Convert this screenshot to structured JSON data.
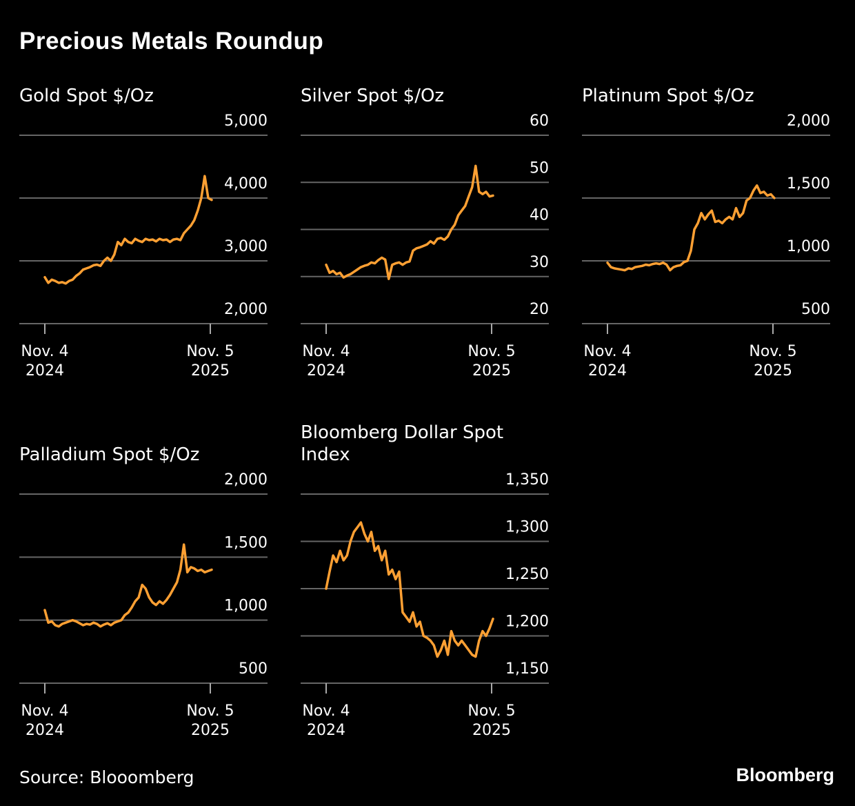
{
  "title": "Precious Metals Roundup",
  "source": "Source: Blooomberg",
  "brand": "Bloomberg",
  "colors": {
    "line": "#FFA033",
    "grid": "#666666",
    "background": "#000000",
    "text": "#FFFFFF"
  },
  "chart_data": [
    {
      "type": "line",
      "title": [
        "Gold Spot $/Oz"
      ],
      "x_ticks": [
        {
          "line1": "Nov. 4",
          "line2": "2024"
        },
        {
          "line1": "Nov. 5",
          "line2": "2025"
        }
      ],
      "x_range": [
        "2024-11-04",
        "2025-11-05"
      ],
      "y_ticks": [
        "5,000",
        "4,000",
        "3,000",
        "2,000"
      ],
      "y_tick_values": [
        5000,
        4000,
        3000,
        2000
      ],
      "ylim": [
        2000,
        5000
      ],
      "grid": true,
      "values": [
        2740,
        2650,
        2700,
        2680,
        2650,
        2660,
        2640,
        2680,
        2700,
        2760,
        2800,
        2860,
        2880,
        2900,
        2930,
        2940,
        2920,
        3000,
        3050,
        3000,
        3100,
        3300,
        3250,
        3350,
        3300,
        3280,
        3350,
        3320,
        3300,
        3350,
        3330,
        3340,
        3310,
        3350,
        3330,
        3340,
        3300,
        3340,
        3350,
        3330,
        3440,
        3500,
        3560,
        3650,
        3800,
        4000,
        4350,
        4000,
        3970
      ]
    },
    {
      "type": "line",
      "title": [
        "Silver Spot $/Oz"
      ],
      "x_ticks": [
        {
          "line1": "Nov. 4",
          "line2": "2024"
        },
        {
          "line1": "Nov. 5",
          "line2": "2025"
        }
      ],
      "x_range": [
        "2024-11-04",
        "2025-11-05"
      ],
      "y_ticks": [
        "60",
        "50",
        "40",
        "30",
        "20"
      ],
      "y_tick_values": [
        60,
        50,
        40,
        30,
        20
      ],
      "ylim": [
        20,
        60
      ],
      "grid": true,
      "values": [
        32.5,
        30.8,
        31.2,
        30.5,
        30.8,
        29.8,
        30.2,
        30.5,
        31,
        31.5,
        32,
        32.3,
        32.5,
        33,
        32.8,
        33.5,
        34,
        33.6,
        29.5,
        32.5,
        32.8,
        33,
        32.5,
        33,
        33.2,
        35.5,
        36,
        36.2,
        36.5,
        36.8,
        37.5,
        37,
        38,
        38.2,
        37.8,
        38.5,
        40,
        41,
        43,
        44,
        45,
        47,
        49,
        53.5,
        48,
        47.5,
        48,
        47,
        47.2
      ]
    },
    {
      "type": "line",
      "title": [
        "Platinum Spot $/Oz"
      ],
      "x_ticks": [
        {
          "line1": "Nov. 4",
          "line2": "2024"
        },
        {
          "line1": "Nov. 5",
          "line2": "2025"
        }
      ],
      "x_range": [
        "2024-11-04",
        "2025-11-05"
      ],
      "y_ticks": [
        "2,000",
        "1,500",
        "1,000",
        "500"
      ],
      "y_tick_values": [
        2000,
        1500,
        1000,
        500
      ],
      "ylim": [
        500,
        2000
      ],
      "grid": true,
      "values": [
        985,
        950,
        940,
        935,
        930,
        925,
        940,
        935,
        950,
        955,
        960,
        970,
        965,
        975,
        980,
        975,
        985,
        970,
        925,
        950,
        960,
        965,
        990,
        1000,
        1080,
        1250,
        1300,
        1380,
        1330,
        1370,
        1400,
        1310,
        1320,
        1300,
        1330,
        1350,
        1330,
        1420,
        1350,
        1380,
        1480,
        1500,
        1560,
        1600,
        1540,
        1550,
        1520,
        1530,
        1500
      ]
    },
    {
      "type": "line",
      "title": [
        "Palladium Spot $/Oz"
      ],
      "x_ticks": [
        {
          "line1": "Nov. 4",
          "line2": "2024"
        },
        {
          "line1": "Nov. 5",
          "line2": "2025"
        }
      ],
      "x_range": [
        "2024-11-04",
        "2025-11-05"
      ],
      "y_ticks": [
        "2,000",
        "1,500",
        "1,000",
        "500"
      ],
      "y_tick_values": [
        2000,
        1500,
        1000,
        500
      ],
      "ylim": [
        500,
        2000
      ],
      "grid": true,
      "values": [
        1080,
        980,
        990,
        960,
        950,
        970,
        980,
        990,
        1000,
        990,
        975,
        960,
        970,
        965,
        980,
        970,
        950,
        965,
        975,
        960,
        980,
        990,
        1000,
        1040,
        1060,
        1100,
        1150,
        1180,
        1280,
        1250,
        1180,
        1140,
        1120,
        1150,
        1130,
        1160,
        1200,
        1250,
        1300,
        1400,
        1600,
        1380,
        1420,
        1410,
        1390,
        1400,
        1380,
        1390,
        1400
      ]
    },
    {
      "type": "line",
      "title": [
        "Bloomberg Dollar Spot",
        "Index"
      ],
      "x_ticks": [
        {
          "line1": "Nov. 4",
          "line2": "2024"
        },
        {
          "line1": "Nov. 5",
          "line2": "2025"
        }
      ],
      "x_range": [
        "2024-11-04",
        "2025-11-05"
      ],
      "y_ticks": [
        "1,350",
        "1,300",
        "1,250",
        "1,200",
        "1,150"
      ],
      "y_tick_values": [
        1350,
        1300,
        1250,
        1200,
        1150
      ],
      "ylim": [
        1150,
        1350
      ],
      "grid": true,
      "values": [
        1250,
        1268,
        1285,
        1278,
        1290,
        1280,
        1285,
        1300,
        1310,
        1315,
        1320,
        1308,
        1300,
        1310,
        1290,
        1295,
        1280,
        1290,
        1265,
        1270,
        1260,
        1268,
        1225,
        1220,
        1215,
        1225,
        1210,
        1215,
        1200,
        1198,
        1195,
        1190,
        1178,
        1185,
        1195,
        1180,
        1205,
        1195,
        1190,
        1195,
        1190,
        1185,
        1180,
        1178,
        1195,
        1205,
        1200,
        1208,
        1218
      ]
    }
  ]
}
